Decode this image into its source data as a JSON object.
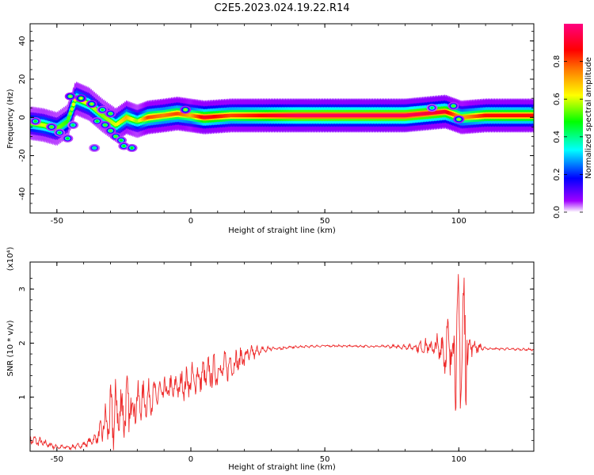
{
  "title": "C2E5.2023.024.19.22.R14",
  "chart_data": [
    {
      "type": "heatmap",
      "xlabel": "Height of straight line (km)",
      "ylabel": "Frequency (Hz)",
      "xlim": [
        -60,
        128
      ],
      "ylim": [
        -50,
        49
      ],
      "xticks": [
        -50,
        0,
        50,
        100
      ],
      "yticks": [
        -40,
        -20,
        0,
        20,
        40
      ],
      "colorbar": {
        "label": "Normalized spectral amplitude",
        "range": [
          0.0,
          1.0
        ],
        "ticks": [
          "0.0",
          "0.2",
          "0.4",
          "0.6",
          "0.8"
        ],
        "tick_values": [
          0.0,
          0.2,
          0.4,
          0.6,
          0.8
        ],
        "colors": [
          "#ffffff",
          "#7a00ff",
          "#0000ff",
          "#00ffff",
          "#00ff00",
          "#ffff00",
          "#ff8000",
          "#ff0000",
          "#ff0080"
        ]
      },
      "band": [
        {
          "x": -60,
          "f": -3,
          "a": 0.55
        },
        {
          "x": -55,
          "f": -4,
          "a": 0.6
        },
        {
          "x": -50,
          "f": -6,
          "a": 0.55
        },
        {
          "x": -46,
          "f": -2,
          "a": 0.5
        },
        {
          "x": -43,
          "f": 10,
          "a": 0.65
        },
        {
          "x": -38,
          "f": 7,
          "a": 0.6
        },
        {
          "x": -33,
          "f": 1,
          "a": 0.55
        },
        {
          "x": -28,
          "f": -4,
          "a": 0.6
        },
        {
          "x": -24,
          "f": 0,
          "a": 0.7
        },
        {
          "x": -20,
          "f": -2,
          "a": 0.55
        },
        {
          "x": -16,
          "f": 0,
          "a": 0.8
        },
        {
          "x": -10,
          "f": 1,
          "a": 0.75
        },
        {
          "x": -5,
          "f": 2,
          "a": 0.8
        },
        {
          "x": 0,
          "f": 1,
          "a": 0.7
        },
        {
          "x": 5,
          "f": 0,
          "a": 0.9
        },
        {
          "x": 15,
          "f": 1,
          "a": 0.8
        },
        {
          "x": 25,
          "f": 1,
          "a": 0.85
        },
        {
          "x": 40,
          "f": 1,
          "a": 0.95
        },
        {
          "x": 60,
          "f": 1,
          "a": 0.95
        },
        {
          "x": 80,
          "f": 1,
          "a": 0.95
        },
        {
          "x": 95,
          "f": 3,
          "a": 0.9
        },
        {
          "x": 101,
          "f": 0,
          "a": 0.7
        },
        {
          "x": 110,
          "f": 1,
          "a": 0.85
        },
        {
          "x": 128,
          "f": 1,
          "a": 0.85
        }
      ],
      "blobs": [
        {
          "x": -58,
          "f": -2,
          "a": 0.45
        },
        {
          "x": -52,
          "f": -5,
          "a": 0.5
        },
        {
          "x": -49,
          "f": -8,
          "a": 0.45
        },
        {
          "x": -46,
          "f": -11,
          "a": 0.45
        },
        {
          "x": -44,
          "f": -4,
          "a": 0.4
        },
        {
          "x": -45,
          "f": 11,
          "a": 0.55
        },
        {
          "x": -41,
          "f": 10,
          "a": 0.6
        },
        {
          "x": -37,
          "f": 7,
          "a": 0.55
        },
        {
          "x": -35,
          "f": -2,
          "a": 0.45
        },
        {
          "x": -32,
          "f": -4,
          "a": 0.5
        },
        {
          "x": -30,
          "f": -7,
          "a": 0.5
        },
        {
          "x": -28,
          "f": -10,
          "a": 0.5
        },
        {
          "x": -26,
          "f": -12,
          "a": 0.45
        },
        {
          "x": -25,
          "f": -15,
          "a": 0.45
        },
        {
          "x": -22,
          "f": -16,
          "a": 0.45
        },
        {
          "x": -36,
          "f": -16,
          "a": 0.35
        },
        {
          "x": -33,
          "f": 4,
          "a": 0.45
        },
        {
          "x": -30,
          "f": 2,
          "a": 0.5
        },
        {
          "x": -2,
          "f": 4,
          "a": 0.55
        },
        {
          "x": 98,
          "f": 6,
          "a": 0.5
        },
        {
          "x": 100,
          "f": -1,
          "a": 0.55
        },
        {
          "x": 90,
          "f": 5,
          "a": 0.4
        }
      ]
    },
    {
      "type": "line",
      "xlabel": "Height of straight line (km)",
      "ylabel": "SNR (10 * v/v)",
      "y_scale_note": "(x10⁴)",
      "xlim": [
        -60,
        128
      ],
      "ylim": [
        0,
        3.5
      ],
      "xticks": [
        -50,
        0,
        50,
        100
      ],
      "yticks": [
        1,
        2,
        3
      ],
      "color": "#ee2b2b",
      "series": [
        {
          "envelope": [
            {
              "x": -60,
              "y": 0.22,
              "amp": 0.1
            },
            {
              "x": -55,
              "y": 0.15,
              "amp": 0.08
            },
            {
              "x": -50,
              "y": 0.08,
              "amp": 0.04
            },
            {
              "x": -45,
              "y": 0.07,
              "amp": 0.04
            },
            {
              "x": -40,
              "y": 0.12,
              "amp": 0.05
            },
            {
              "x": -35,
              "y": 0.25,
              "amp": 0.1
            },
            {
              "x": -32,
              "y": 0.5,
              "amp": 0.35
            },
            {
              "x": -28,
              "y": 0.7,
              "amp": 0.7
            },
            {
              "x": -24,
              "y": 0.8,
              "amp": 0.55
            },
            {
              "x": -20,
              "y": 0.9,
              "amp": 0.35
            },
            {
              "x": -15,
              "y": 1.0,
              "amp": 0.3
            },
            {
              "x": -10,
              "y": 1.1,
              "amp": 0.25
            },
            {
              "x": -5,
              "y": 1.2,
              "amp": 0.25
            },
            {
              "x": 0,
              "y": 1.3,
              "amp": 0.3
            },
            {
              "x": 5,
              "y": 1.4,
              "amp": 0.3
            },
            {
              "x": 10,
              "y": 1.5,
              "amp": 0.3
            },
            {
              "x": 15,
              "y": 1.6,
              "amp": 0.25
            },
            {
              "x": 20,
              "y": 1.75,
              "amp": 0.2
            },
            {
              "x": 25,
              "y": 1.85,
              "amp": 0.1
            },
            {
              "x": 30,
              "y": 1.9,
              "amp": 0.05
            },
            {
              "x": 40,
              "y": 1.93,
              "amp": 0.02
            },
            {
              "x": 50,
              "y": 1.95,
              "amp": 0.02
            },
            {
              "x": 70,
              "y": 1.94,
              "amp": 0.02
            },
            {
              "x": 82,
              "y": 1.93,
              "amp": 0.05
            },
            {
              "x": 88,
              "y": 1.93,
              "amp": 0.15
            },
            {
              "x": 93,
              "y": 1.9,
              "amp": 0.3
            },
            {
              "x": 97,
              "y": 1.9,
              "amp": 0.7
            },
            {
              "x": 100,
              "y": 1.95,
              "amp": 1.2
            },
            {
              "x": 102,
              "y": 2.0,
              "amp": 1.5
            },
            {
              "x": 104,
              "y": 1.95,
              "amp": 0.2
            },
            {
              "x": 110,
              "y": 1.9,
              "amp": 0.02
            },
            {
              "x": 128,
              "y": 1.88,
              "amp": 0.02
            }
          ]
        }
      ]
    }
  ]
}
